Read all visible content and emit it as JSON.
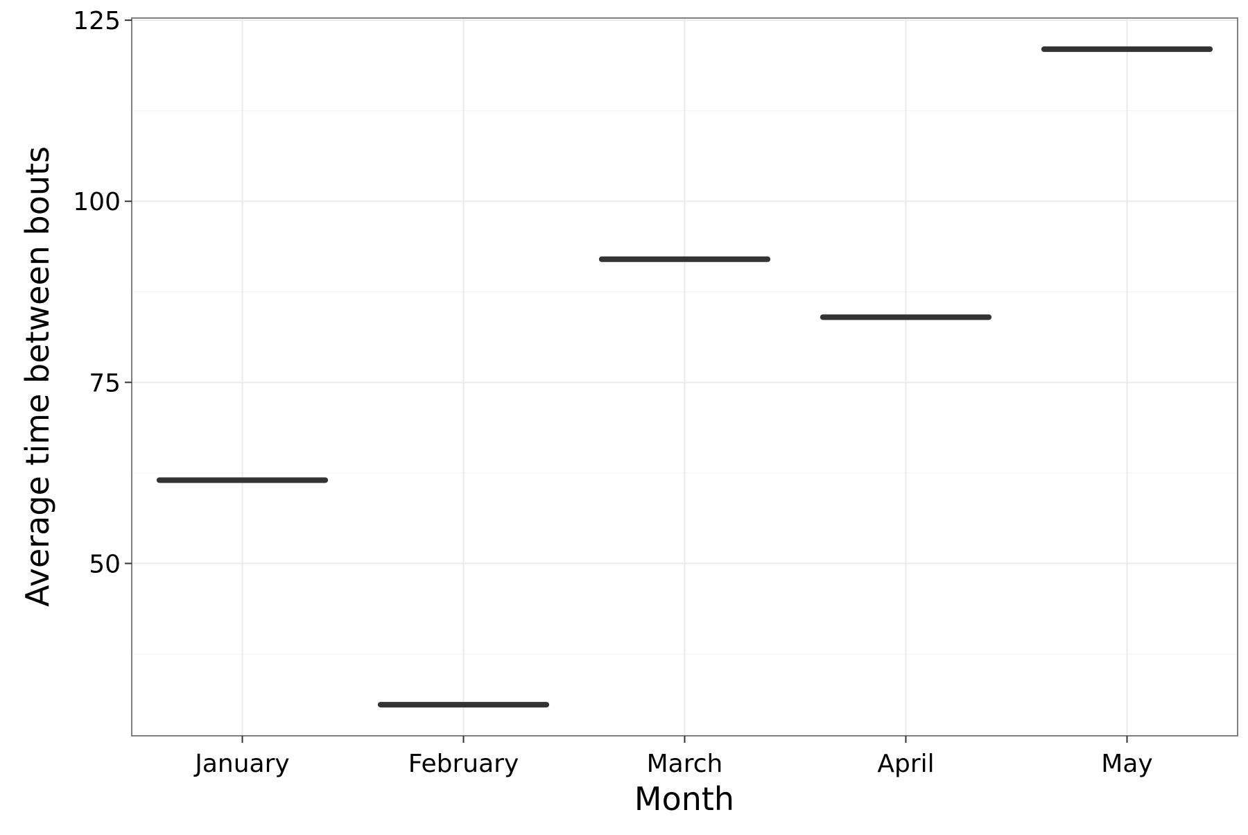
{
  "chart_data": {
    "type": "crossbar",
    "title": "",
    "xlabel": "Month",
    "ylabel": "Average time between bouts",
    "categories": [
      "January",
      "February",
      "March",
      "April",
      "May"
    ],
    "values": [
      61.5,
      30.5,
      92,
      84,
      121
    ],
    "ylim": [
      26.2,
      125.3
    ],
    "yticks": [
      50,
      75,
      100,
      125
    ],
    "yminor_ticks": [
      37.5,
      62.5,
      87.5,
      112.5
    ],
    "ytick_labels": [
      "50",
      "75",
      "100",
      "125"
    ],
    "grid": true,
    "legend": "none",
    "colors": {
      "mark": "#333333",
      "grid_major": "#ebebeb",
      "grid_minor": "#f5f5f5",
      "panel_border": "#7f7f7f",
      "tick": "#333333"
    }
  }
}
